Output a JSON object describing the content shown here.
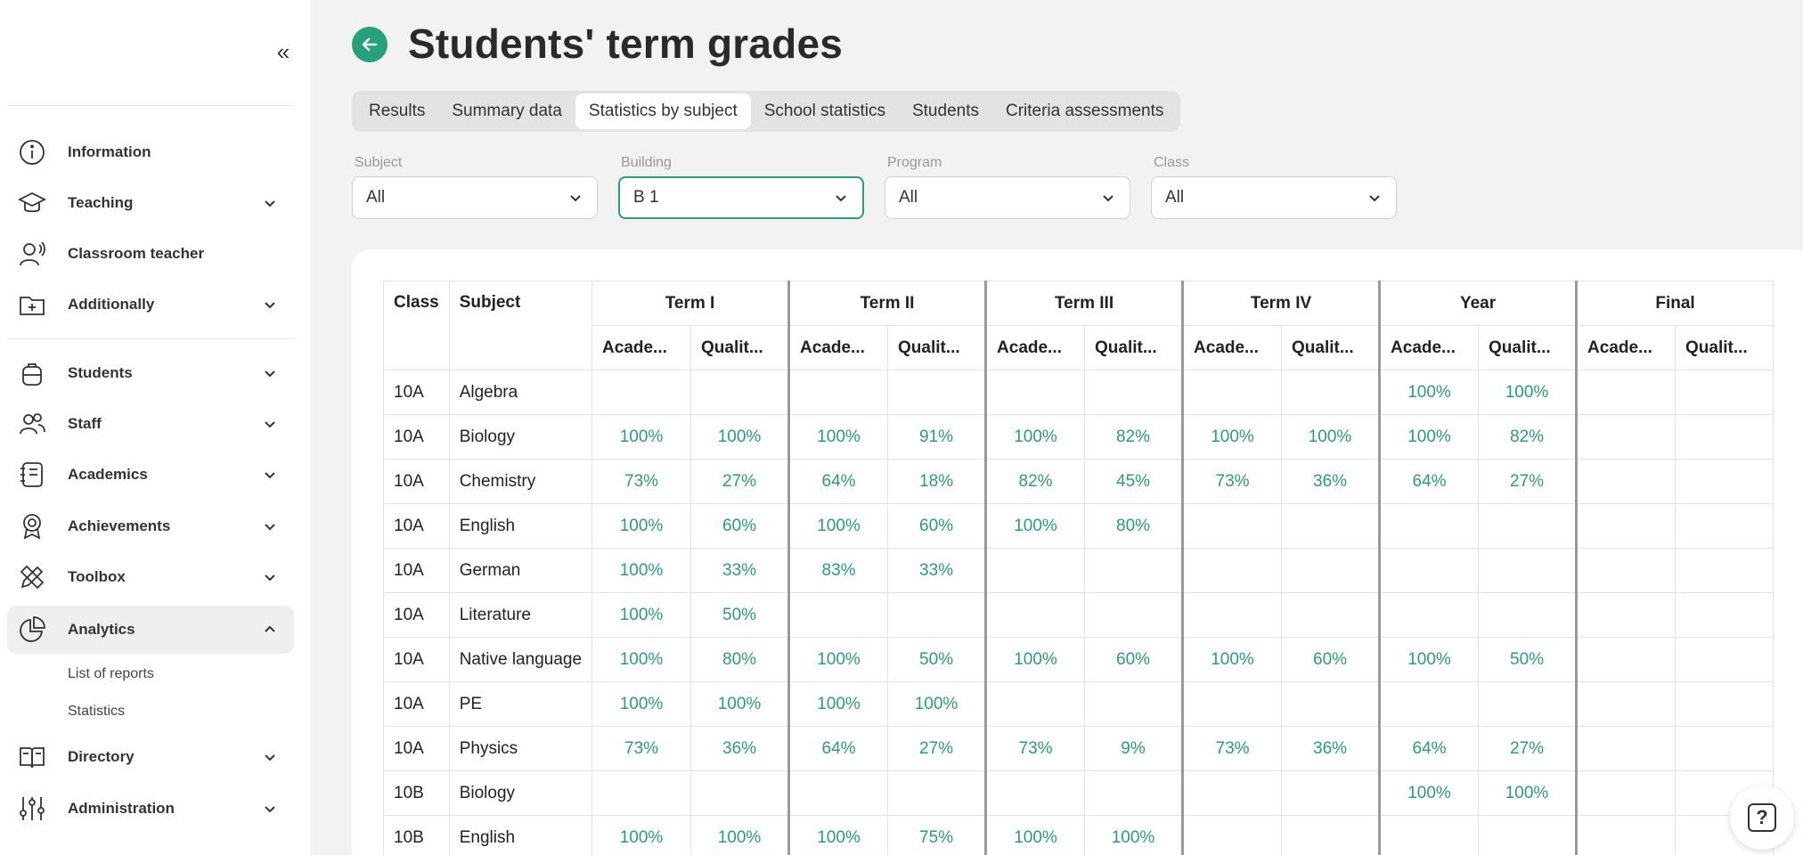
{
  "sidebar": {
    "collapse_icon": "double-chevron-left-icon",
    "items": [
      {
        "label": "Information",
        "icon": "info-icon",
        "expandable": false
      },
      {
        "label": "Teaching",
        "icon": "graduation-cap-icon",
        "expandable": true
      },
      {
        "label": "Classroom teacher",
        "icon": "teacher-icon",
        "expandable": false
      },
      {
        "label": "Additionally",
        "icon": "folder-plus-icon",
        "expandable": true
      },
      {
        "label": "Students",
        "icon": "backpack-icon",
        "expandable": true
      },
      {
        "label": "Staff",
        "icon": "people-icon",
        "expandable": true
      },
      {
        "label": "Academics",
        "icon": "notebook-icon",
        "expandable": true
      },
      {
        "label": "Achievements",
        "icon": "award-icon",
        "expandable": true
      },
      {
        "label": "Toolbox",
        "icon": "pencil-ruler-icon",
        "expandable": true
      },
      {
        "label": "Analytics",
        "icon": "pie-chart-icon",
        "expandable": true,
        "expanded": true
      },
      {
        "label": "Directory",
        "icon": "book-open-icon",
        "expandable": true
      },
      {
        "label": "Administration",
        "icon": "sliders-icon",
        "expandable": true
      }
    ],
    "analytics_sub": [
      "List of reports",
      "Statistics"
    ]
  },
  "header": {
    "title": "Students' term grades",
    "back_icon": "arrow-left-icon"
  },
  "tabs": [
    {
      "label": "Results",
      "active": false
    },
    {
      "label": "Summary data",
      "active": false
    },
    {
      "label": "Statistics by subject",
      "active": true
    },
    {
      "label": "School statistics",
      "active": false
    },
    {
      "label": "Students",
      "active": false
    },
    {
      "label": "Criteria assessments",
      "active": false
    }
  ],
  "filters": [
    {
      "label": "Subject",
      "value": "All"
    },
    {
      "label": "Building",
      "value": "B 1"
    },
    {
      "label": "Program",
      "value": "All"
    },
    {
      "label": "Class",
      "value": "All"
    }
  ],
  "table": {
    "col_class": "Class",
    "col_subject": "Subject",
    "terms": [
      "Term I",
      "Term II",
      "Term III",
      "Term IV",
      "Year",
      "Final"
    ],
    "sub_cols": [
      "Acade...",
      "Qualit..."
    ],
    "rows": [
      {
        "class": "10A",
        "subject": "Algebra",
        "values": [
          "",
          "",
          "",
          "",
          "",
          "",
          "",
          "",
          "100%",
          "100%",
          "",
          ""
        ]
      },
      {
        "class": "10A",
        "subject": "Biology",
        "values": [
          "100%",
          "100%",
          "100%",
          "91%",
          "100%",
          "82%",
          "100%",
          "100%",
          "100%",
          "82%",
          "",
          ""
        ]
      },
      {
        "class": "10A",
        "subject": "Chemistry",
        "values": [
          "73%",
          "27%",
          "64%",
          "18%",
          "82%",
          "45%",
          "73%",
          "36%",
          "64%",
          "27%",
          "",
          ""
        ]
      },
      {
        "class": "10A",
        "subject": "English",
        "values": [
          "100%",
          "60%",
          "100%",
          "60%",
          "100%",
          "80%",
          "",
          "",
          "",
          "",
          "",
          ""
        ]
      },
      {
        "class": "10A",
        "subject": "German",
        "values": [
          "100%",
          "33%",
          "83%",
          "33%",
          "",
          "",
          "",
          "",
          "",
          "",
          "",
          ""
        ]
      },
      {
        "class": "10A",
        "subject": "Literature",
        "values": [
          "100%",
          "50%",
          "",
          "",
          "",
          "",
          "",
          "",
          "",
          "",
          "",
          ""
        ]
      },
      {
        "class": "10A",
        "subject": "Native language",
        "values": [
          "100%",
          "80%",
          "100%",
          "50%",
          "100%",
          "60%",
          "100%",
          "60%",
          "100%",
          "50%",
          "",
          ""
        ]
      },
      {
        "class": "10A",
        "subject": "PE",
        "values": [
          "100%",
          "100%",
          "100%",
          "100%",
          "",
          "",
          "",
          "",
          "",
          "",
          "",
          ""
        ]
      },
      {
        "class": "10A",
        "subject": "Physics",
        "values": [
          "73%",
          "36%",
          "64%",
          "27%",
          "73%",
          "9%",
          "73%",
          "36%",
          "64%",
          "27%",
          "",
          ""
        ]
      },
      {
        "class": "10B",
        "subject": "Biology",
        "values": [
          "",
          "",
          "",
          "",
          "",
          "",
          "",
          "",
          "100%",
          "100%",
          "",
          ""
        ]
      },
      {
        "class": "10B",
        "subject": "English",
        "values": [
          "100%",
          "100%",
          "100%",
          "75%",
          "100%",
          "100%",
          "",
          "",
          "",
          "",
          "",
          ""
        ]
      }
    ]
  },
  "help": {
    "glyph": "?",
    "icon": "help-icon"
  },
  "colors": {
    "accent": "#26a17b",
    "value_text": "#2a9d78"
  }
}
